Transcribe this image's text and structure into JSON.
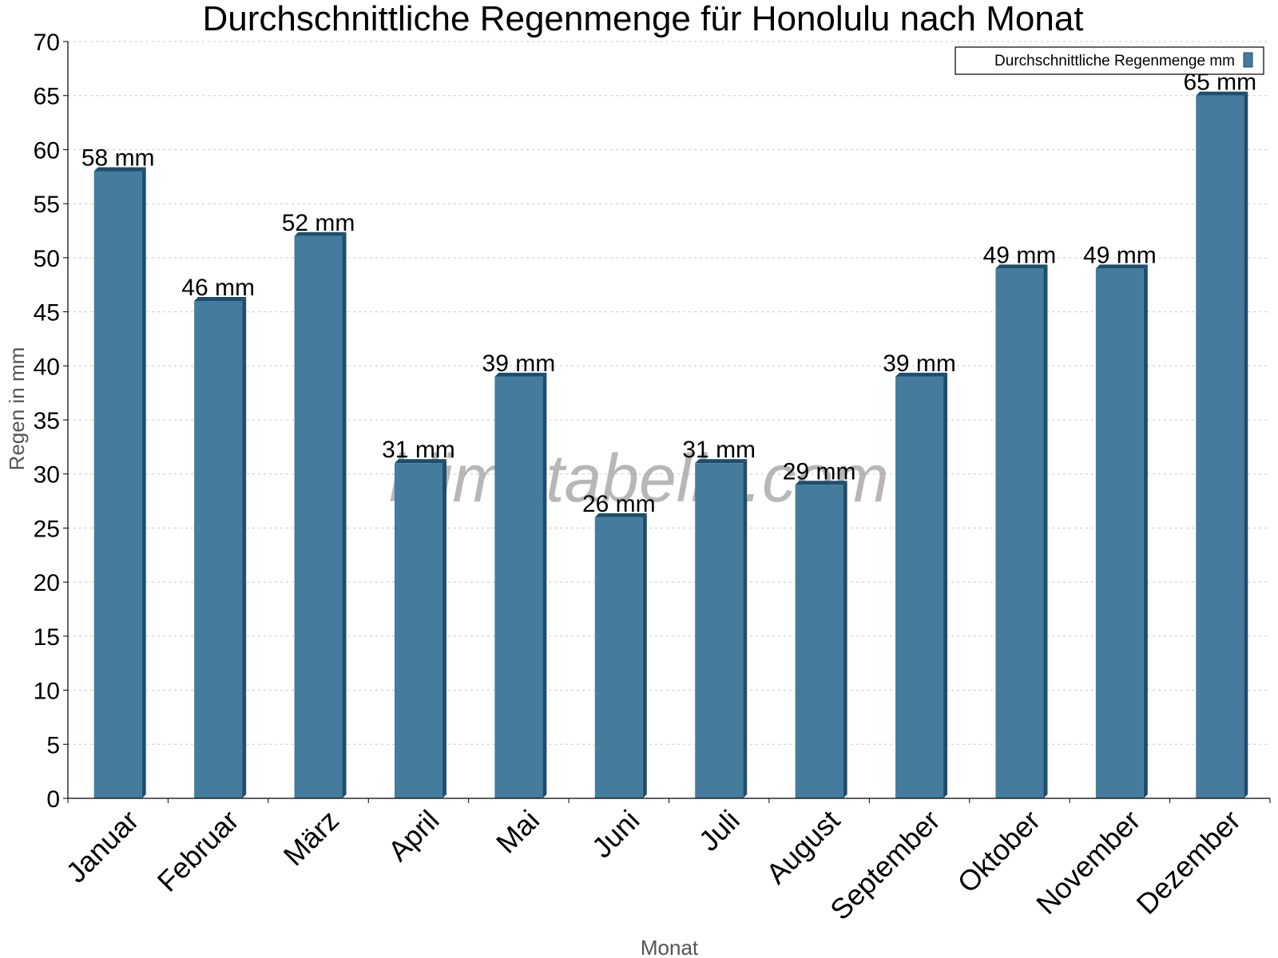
{
  "chart_data": {
    "type": "bar",
    "title": "Durchschnittliche Regenmenge für Honolulu nach Monat",
    "xlabel": "Monat",
    "ylabel": "Regen in mm",
    "ylim": [
      0,
      70
    ],
    "ytick_step": 5,
    "grid": true,
    "legend_position": "top-right",
    "unit": "mm",
    "categories": [
      "Januar",
      "Februar",
      "März",
      "April",
      "Mai",
      "Juni",
      "Juli",
      "August",
      "September",
      "Oktober",
      "November",
      "Dezember"
    ],
    "series": [
      {
        "name": "Durchschnittliche Regenmenge mm",
        "color": "#457b9d",
        "values": [
          58,
          46,
          52,
          31,
          39,
          26,
          31,
          29,
          39,
          49,
          49,
          65
        ]
      }
    ]
  },
  "watermark": "klimatabelle.com",
  "colors": {
    "bar_front": "#457b9d",
    "bar_dark": "#1d4e6e"
  }
}
